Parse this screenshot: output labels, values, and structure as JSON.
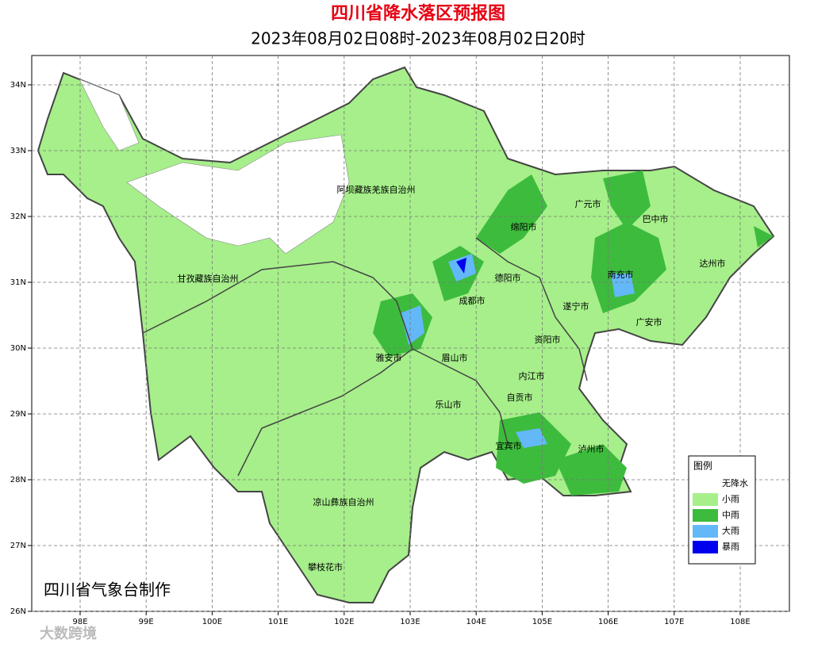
{
  "header": {
    "title": "四川省降水落区预报图",
    "subtitle": "2023年08月02日08时-2023年08月02日20时"
  },
  "map": {
    "lon_labels": [
      "98E",
      "99E",
      "100E",
      "101E",
      "102E",
      "103E",
      "104E",
      "105E",
      "106E",
      "107E",
      "108E"
    ],
    "lat_labels": [
      "34N",
      "33N",
      "32N",
      "31N",
      "30N",
      "29N",
      "28N",
      "27N",
      "26N"
    ],
    "regions": [
      "阿坝藏族羌族自治州",
      "甘孜藏族自治州",
      "凉山彝族自治州",
      "攀枝花市",
      "雅安市",
      "眉山市",
      "乐山市",
      "成都市",
      "德阳市",
      "绵阳市",
      "广元市",
      "巴中市",
      "达州市",
      "南充市",
      "遂宁市",
      "广安市",
      "资阳市",
      "内江市",
      "自贡市",
      "宜宾市",
      "泸州市"
    ]
  },
  "legend": {
    "title": "图例",
    "items": [
      "无降水",
      "小雨",
      "中雨",
      "大雨",
      "暴雨"
    ]
  },
  "credit": "四川省气象台制作",
  "watermark": "大数跨境"
}
